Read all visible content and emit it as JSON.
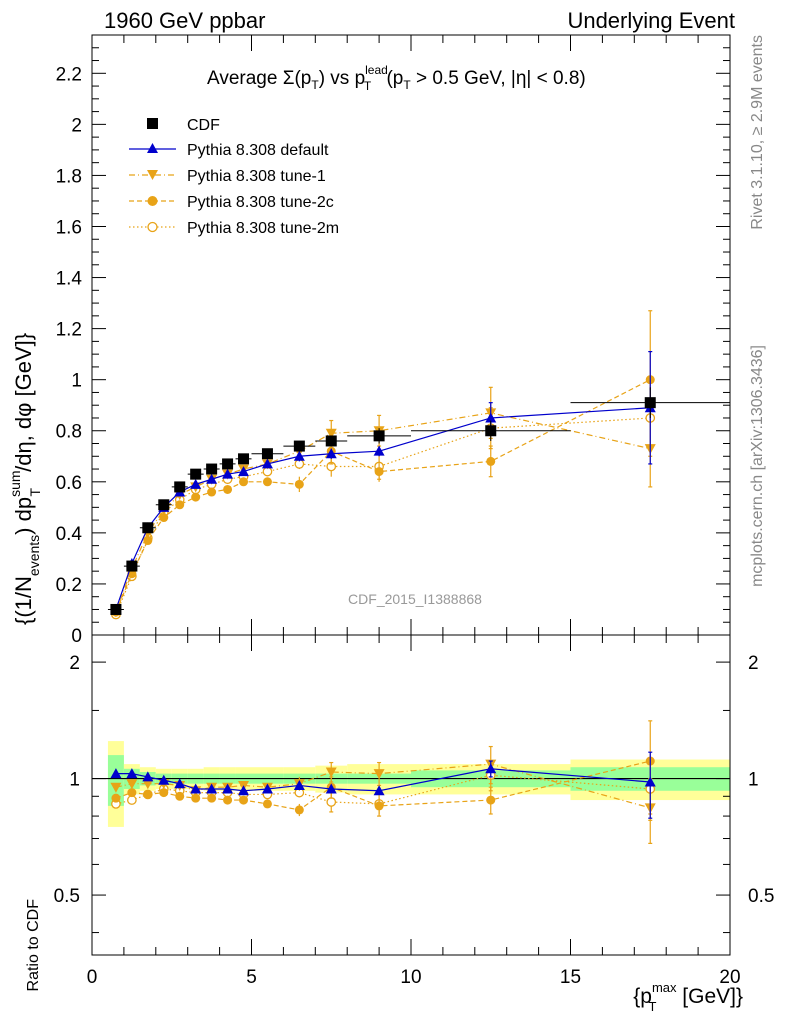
{
  "header": {
    "left": "1960 GeV ppbar",
    "right": "Underlying Event",
    "side_rivet": "Rivet 3.1.10, ≥ 2.9M events",
    "side_mcplots": "mcplots.cern.ch [arXiv:1306.3436]",
    "watermark": "CDF_2015_I1388868"
  },
  "colors": {
    "cdf": "#000000",
    "default": "#0000cc",
    "tunes": "#e8a317",
    "band_inner": "#99ff99",
    "band_outer": "#ffff99"
  },
  "chart_data": [
    {
      "type": "scatter",
      "title": "Average Σ(p_T) vs p_T^lead (p_T > 0.5 GeV, |η| < 0.8)",
      "title_parts": {
        "lead": "Average ",
        "sigma": "Σ(p",
        "t1": "T",
        "close": ") vs p",
        "sup": "lead",
        "t2": "T",
        "cut1": " (p",
        "t3": "T",
        "cut2": " > 0.5 GeV, |η| < 0.8)"
      },
      "ylabel": "{(1/N_events) dp_T^sum/dη, dφ [GeV]}",
      "ylabel_parts": {
        "a": "{(1/N",
        "b": "events",
        "c": ") dp",
        "d": "sum",
        "e": "T",
        "f": "/dη, dφ [GeV]}"
      },
      "xlim": [
        0,
        20
      ],
      "ylim": [
        0,
        2.35
      ],
      "yticks": [
        "0",
        "0.2",
        "0.4",
        "0.6",
        "0.8",
        "1",
        "1.2",
        "1.4",
        "1.6",
        "1.8",
        "2",
        "2.2"
      ],
      "legend_position": "top-left",
      "x": [
        0.75,
        1.25,
        1.75,
        2.25,
        2.75,
        3.25,
        3.75,
        4.25,
        4.75,
        5.5,
        6.5,
        7.5,
        9.0,
        12.5,
        17.5
      ],
      "x_err": [
        0.25,
        0.25,
        0.25,
        0.25,
        0.25,
        0.25,
        0.25,
        0.25,
        0.25,
        0.5,
        0.5,
        0.5,
        1.0,
        2.5,
        2.5
      ],
      "series": [
        {
          "name": "CDF",
          "marker": "square",
          "values": [
            0.1,
            0.27,
            0.42,
            0.51,
            0.58,
            0.63,
            0.65,
            0.67,
            0.69,
            0.71,
            0.74,
            0.76,
            0.78,
            0.8,
            0.91
          ],
          "errors": [
            0.01,
            0.01,
            0.01,
            0.01,
            0.01,
            0.01,
            0.01,
            0.01,
            0.01,
            0.01,
            0.02,
            0.02,
            0.03,
            0.04,
            0.06
          ]
        },
        {
          "name": "Pythia 8.308 default",
          "marker": "triangle-up",
          "line": "solid",
          "values": [
            0.1,
            0.28,
            0.42,
            0.5,
            0.56,
            0.59,
            0.61,
            0.63,
            0.64,
            0.67,
            0.7,
            0.71,
            0.72,
            0.85,
            0.89
          ],
          "errors": [
            0.01,
            0.01,
            0.01,
            0.01,
            0.01,
            0.01,
            0.01,
            0.01,
            0.01,
            0.01,
            0.02,
            0.02,
            0.02,
            0.06,
            0.22
          ]
        },
        {
          "name": "Pythia 8.308 tune-1",
          "marker": "triangle-down",
          "line": "dashdot",
          "values": [
            0.09,
            0.26,
            0.4,
            0.49,
            0.55,
            0.58,
            0.61,
            0.63,
            0.65,
            0.67,
            0.72,
            0.79,
            0.8,
            0.87,
            0.73
          ],
          "errors": [
            0.01,
            0.01,
            0.01,
            0.01,
            0.01,
            0.01,
            0.01,
            0.01,
            0.01,
            0.01,
            0.03,
            0.05,
            0.06,
            0.1,
            0.15
          ]
        },
        {
          "name": "Pythia 8.308 tune-2c",
          "marker": "circle",
          "line": "dashed",
          "values": [
            0.09,
            0.24,
            0.37,
            0.46,
            0.51,
            0.54,
            0.56,
            0.57,
            0.6,
            0.6,
            0.59,
            0.72,
            0.64,
            0.68,
            1.0
          ],
          "errors": [
            0.01,
            0.01,
            0.01,
            0.01,
            0.01,
            0.01,
            0.01,
            0.01,
            0.01,
            0.01,
            0.03,
            0.05,
            0.04,
            0.06,
            0.27
          ]
        },
        {
          "name": "Pythia 8.308 tune-2m",
          "marker": "circle-open",
          "line": "dotted",
          "values": [
            0.08,
            0.23,
            0.38,
            0.48,
            0.53,
            0.57,
            0.59,
            0.61,
            0.62,
            0.64,
            0.67,
            0.66,
            0.66,
            0.81,
            0.85
          ],
          "errors": [
            0.01,
            0.01,
            0.01,
            0.01,
            0.01,
            0.01,
            0.01,
            0.01,
            0.01,
            0.01,
            0.02,
            0.04,
            0.05,
            0.08,
            0.15
          ]
        }
      ]
    },
    {
      "type": "scatter",
      "ylabel": "Ratio to CDF",
      "xlabel": "{p_T^max [GeV]}",
      "xlabel_parts": {
        "a": "{p",
        "b": "max",
        "c": "T",
        "d": " [GeV]}"
      },
      "xlim": [
        0,
        20
      ],
      "xticks": [
        "0",
        "5",
        "10",
        "15",
        "20"
      ],
      "ylim": [
        0.35,
        2.35
      ],
      "log_y": true,
      "yticks": [
        "0.5",
        "1",
        "2"
      ],
      "reference_band": {
        "x": [
          0.75,
          1.25,
          1.75,
          2.25,
          2.75,
          3.25,
          3.75,
          4.25,
          4.75,
          5.5,
          6.5,
          7.5,
          9.0,
          12.5,
          17.5
        ],
        "x_err": [
          0.25,
          0.25,
          0.25,
          0.25,
          0.25,
          0.25,
          0.25,
          0.25,
          0.25,
          0.5,
          0.5,
          0.5,
          1.0,
          2.5,
          2.5
        ],
        "inner": [
          0.15,
          0.06,
          0.04,
          0.03,
          0.03,
          0.03,
          0.03,
          0.03,
          0.03,
          0.03,
          0.03,
          0.03,
          0.03,
          0.05,
          0.07
        ],
        "outer": [
          0.25,
          0.09,
          0.07,
          0.06,
          0.06,
          0.06,
          0.07,
          0.07,
          0.07,
          0.07,
          0.07,
          0.08,
          0.09,
          0.09,
          0.12
        ]
      },
      "series": [
        {
          "name": "Pythia 8.308 default",
          "values": [
            1.03,
            1.03,
            1.01,
            0.99,
            0.97,
            0.94,
            0.94,
            0.94,
            0.93,
            0.94,
            0.96,
            0.94,
            0.93,
            1.06,
            0.98
          ],
          "errors": [
            0.01,
            0.01,
            0.01,
            0.01,
            0.01,
            0.01,
            0.01,
            0.01,
            0.01,
            0.01,
            0.02,
            0.02,
            0.02,
            0.05,
            0.19
          ]
        },
        {
          "name": "Pythia 8.308 tune-1",
          "values": [
            0.95,
            0.97,
            0.97,
            0.97,
            0.96,
            0.93,
            0.95,
            0.95,
            0.96,
            0.95,
            0.97,
            1.04,
            1.03,
            1.09,
            0.84
          ],
          "errors": [
            0.01,
            0.01,
            0.01,
            0.01,
            0.01,
            0.01,
            0.01,
            0.01,
            0.01,
            0.01,
            0.04,
            0.06,
            0.07,
            0.12,
            0.16
          ]
        },
        {
          "name": "Pythia 8.308 tune-2c",
          "values": [
            0.89,
            0.92,
            0.91,
            0.92,
            0.9,
            0.89,
            0.89,
            0.88,
            0.88,
            0.86,
            0.83,
            0.95,
            0.85,
            0.88,
            1.11
          ],
          "errors": [
            0.01,
            0.01,
            0.01,
            0.01,
            0.01,
            0.01,
            0.01,
            0.01,
            0.01,
            0.01,
            0.03,
            0.06,
            0.04,
            0.07,
            0.3
          ]
        },
        {
          "name": "Pythia 8.308 tune-2m",
          "values": [
            0.86,
            0.88,
            0.91,
            0.94,
            0.93,
            0.92,
            0.92,
            0.92,
            0.91,
            0.91,
            0.92,
            0.87,
            0.86,
            1.02,
            0.94
          ],
          "errors": [
            0.01,
            0.01,
            0.01,
            0.01,
            0.01,
            0.01,
            0.01,
            0.01,
            0.01,
            0.01,
            0.02,
            0.05,
            0.06,
            0.09,
            0.16
          ]
        }
      ]
    }
  ]
}
